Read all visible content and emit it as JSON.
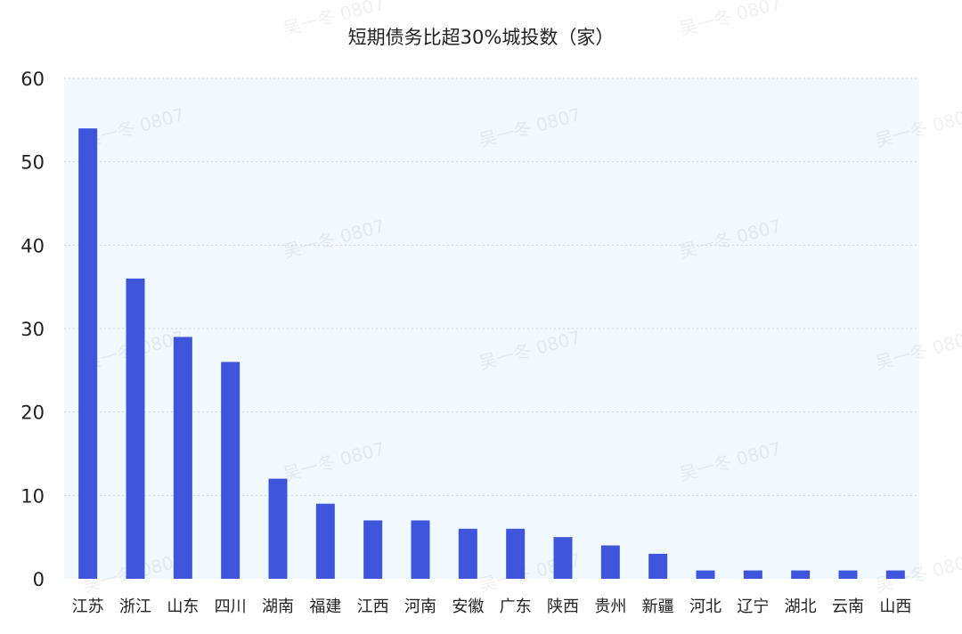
{
  "chart_data": {
    "type": "bar",
    "title": "短期债务比超30%城投数（家）",
    "xlabel": "",
    "ylabel": "",
    "ylim": [
      0,
      60
    ],
    "yticks": [
      0,
      10,
      20,
      30,
      40,
      50,
      60
    ],
    "grid": true,
    "categories": [
      "江苏",
      "浙江",
      "山东",
      "四川",
      "湖南",
      "福建",
      "江西",
      "河南",
      "安徽",
      "广东",
      "陕西",
      "贵州",
      "新疆",
      "河北",
      "辽宁",
      "湖北",
      "云南",
      "山西"
    ],
    "values": [
      54,
      36,
      29,
      26,
      12,
      9,
      7,
      7,
      6,
      6,
      5,
      4,
      3,
      1,
      1,
      1,
      1,
      1
    ],
    "bar_color": "#3d56dc",
    "plot_bg": "#f1f8fe"
  },
  "watermark": "吴一冬 0807"
}
